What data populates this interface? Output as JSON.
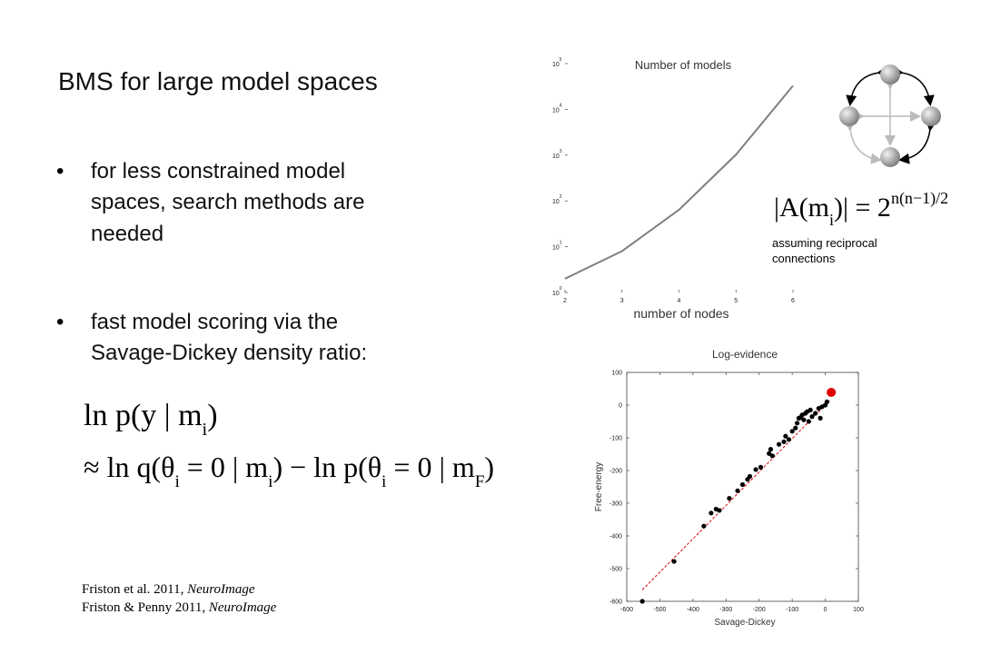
{
  "slide": {
    "title": "BMS for large model spaces",
    "bullets": [
      [
        "for less constrained model",
        "spaces, search methods are",
        "needed"
      ],
      [
        "fast model scoring via the",
        "Savage-Dickey density ratio:"
      ]
    ],
    "equations": [
      [
        "ln p(y | m",
        "i",
        ")"
      ],
      [
        "≈ ln q(θ",
        "i",
        " = 0 | m",
        "i",
        ") − ln p(θ",
        "i",
        " = 0 | m",
        "F",
        ")"
      ]
    ],
    "formula": {
      "base": [
        "|A(m",
        "i",
        ")| = 2"
      ],
      "sup": "n(n−1)/2"
    },
    "note": [
      "assuming reciprocal",
      "connections"
    ],
    "references": [
      [
        "Friston et al. 2011, ",
        "NeuroImage"
      ],
      [
        "Friston & Penny 2011, ",
        "NeuroImage"
      ]
    ]
  },
  "chart_data": [
    {
      "type": "line",
      "title": "Number of models",
      "x_label": "number of nodes",
      "x": [
        2,
        3,
        4,
        5,
        6
      ],
      "values": [
        2,
        8,
        64,
        1024,
        32768
      ],
      "color": "#808080",
      "xlim": [
        2,
        6
      ],
      "xticks": [
        2,
        3,
        4,
        5,
        6
      ],
      "ylim": [
        1,
        100000
      ],
      "y_scale": "log",
      "yticks": [
        {
          "value": 1,
          "label": "10",
          "exp": "0"
        },
        {
          "value": 10,
          "label": "10",
          "exp": "1"
        },
        {
          "value": 100,
          "label": "10",
          "exp": "2"
        },
        {
          "value": 1000,
          "label": "10",
          "exp": "3"
        },
        {
          "value": 10000,
          "label": "10",
          "exp": "4"
        },
        {
          "value": 100000,
          "label": "10",
          "exp": "5"
        }
      ]
    },
    {
      "type": "scatter",
      "title": "Log-evidence",
      "x_label": "Savage-Dickey",
      "y_label": "Free-energy",
      "xlim": [
        -600,
        100
      ],
      "xticks": [
        -600,
        -500,
        -400,
        -300,
        -200,
        -100,
        0,
        100
      ],
      "ylim": [
        -600,
        100
      ],
      "yticks": [
        -600,
        -500,
        -400,
        -300,
        -200,
        -100,
        0,
        100
      ],
      "series": [
        {
          "color": "#e00000",
          "style": "dashed",
          "x": [
            -553,
            15
          ],
          "values": [
            -565,
            15
          ]
        },
        {
          "color": "#000000",
          "size": 2.6,
          "x": [
            -553,
            -457,
            -367,
            -345,
            -330,
            -320,
            -290,
            -265,
            -250,
            -235,
            -228,
            -210,
            -195,
            -170,
            -165,
            -160,
            -140,
            -125,
            -120,
            -110,
            -100,
            -90,
            -85,
            -80,
            -75,
            -70,
            -65,
            -60,
            -55,
            -50,
            -45,
            -40,
            -30,
            -20,
            -15,
            -10,
            0,
            5
          ],
          "values": [
            -600,
            -478,
            -370,
            -330,
            -318,
            -322,
            -285,
            -262,
            -243,
            -227,
            -218,
            -197,
            -190,
            -148,
            -135,
            -155,
            -120,
            -112,
            -95,
            -105,
            -80,
            -70,
            -55,
            -40,
            -38,
            -30,
            -45,
            -25,
            -20,
            -50,
            -15,
            -35,
            -25,
            -10,
            -40,
            -5,
            0,
            10
          ]
        },
        {
          "color": "#e00000",
          "size": 5,
          "x": [
            18
          ],
          "values": [
            39
          ]
        }
      ]
    }
  ]
}
